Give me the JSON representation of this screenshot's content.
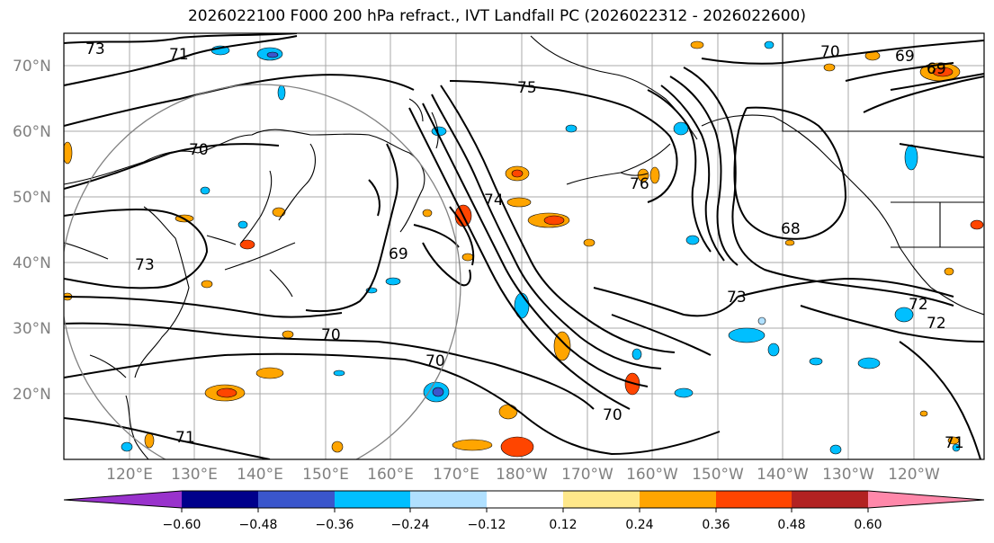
{
  "title": "2026022100 F000 200 hPa refract., IVT Landfall PC (2026022312 - 2026022600)",
  "map": {
    "lat_labels": [
      "70°N",
      "60°N",
      "50°N",
      "40°N",
      "30°N",
      "20°N"
    ],
    "lon_labels": [
      "120°E",
      "130°E",
      "140°E",
      "150°E",
      "160°E",
      "170°E",
      "180°W",
      "170°W",
      "160°W",
      "150°W",
      "140°W",
      "130°W",
      "120°W"
    ],
    "contour_labels": [
      "73",
      "71",
      "70",
      "75",
      "76",
      "74",
      "73",
      "69",
      "70",
      "70",
      "70",
      "68",
      "73",
      "71",
      "71",
      "69",
      "70",
      "72",
      "72",
      "69"
    ],
    "colors": {
      "land_line": "#000000",
      "grid": "#a0a0a0",
      "ring": "#808080"
    }
  },
  "colorbar": {
    "tick_labels": [
      "−0.60",
      "−0.48",
      "−0.36",
      "−0.24",
      "−0.12",
      "0.12",
      "0.24",
      "0.36",
      "0.48",
      "0.60"
    ],
    "colors": [
      "#9932cc",
      "#00008b",
      "#3a56cc",
      "#00bfff",
      "#b0e0ff",
      "#ffffff",
      "#ffe88a",
      "#ffa500",
      "#ff4500",
      "#b22222",
      "#ff88aa"
    ]
  }
}
